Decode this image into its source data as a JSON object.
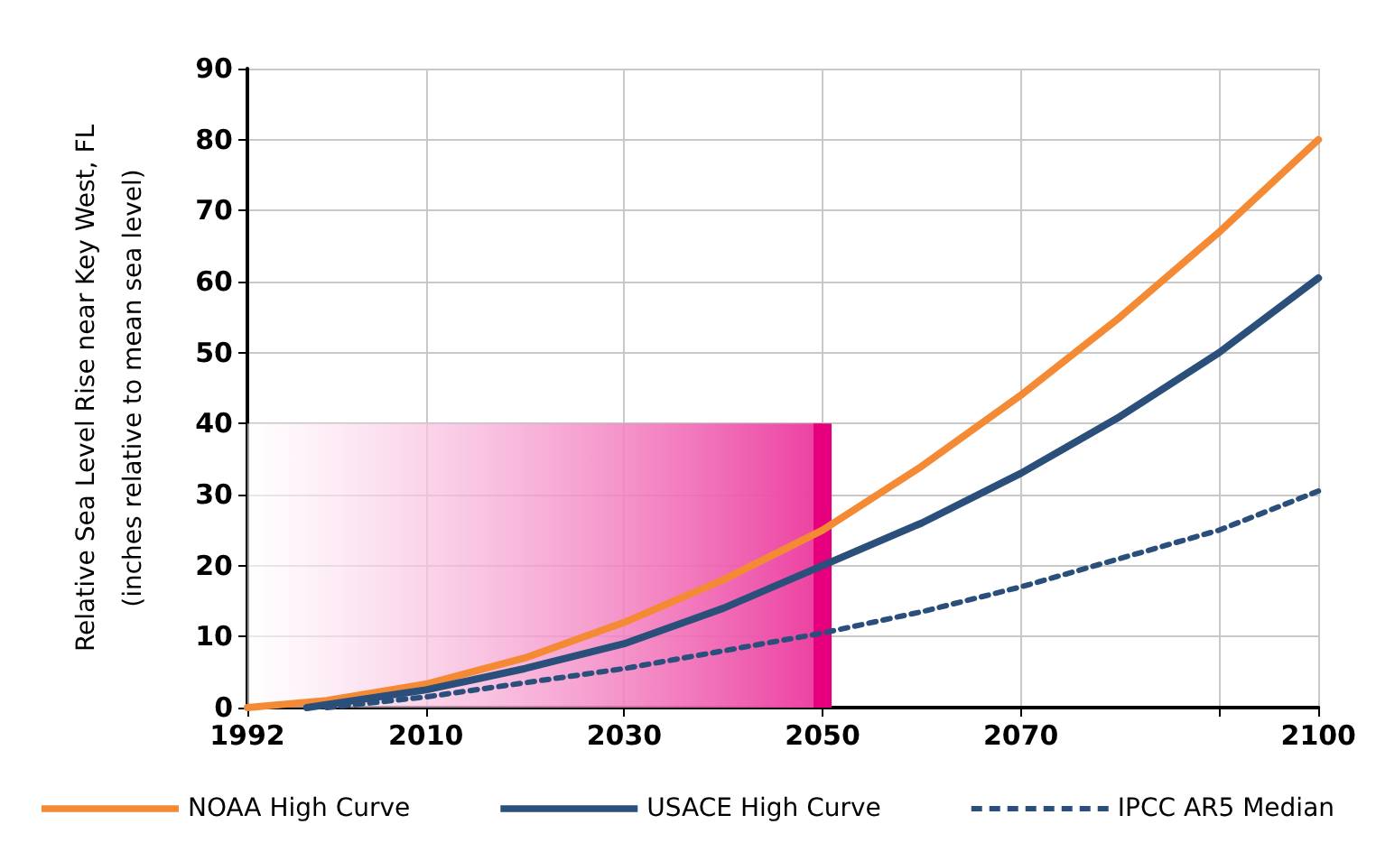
{
  "chart_data": {
    "type": "line",
    "ylabel": "Relative Sea Level Rise near Key West, FL\n(inches relative to mean sea level)",
    "xlim": [
      1992,
      2100
    ],
    "xticks": [
      1992,
      2010,
      2030,
      2050,
      2070,
      {
        "value": 2090,
        "label": null
      },
      2100
    ],
    "ylim": [
      0,
      90
    ],
    "yticks": [
      0,
      10,
      20,
      30,
      40,
      50,
      60,
      70,
      80,
      90
    ],
    "grid": true,
    "legend": "bottom",
    "marker": "none",
    "series": [
      {
        "name": "NOAA High Curve",
        "color": "#f58a35",
        "line_style": "solid",
        "x": [
          1992,
          2000,
          2010,
          2020,
          2030,
          2040,
          2050,
          2060,
          2070,
          2080,
          2090,
          2100
        ],
        "values": [
          0,
          1,
          3.3,
          7,
          12,
          18,
          25,
          34,
          44,
          55,
          67,
          80
        ]
      },
      {
        "name": "USACE High Curve",
        "color": "#2b4f7b",
        "line_style": "solid",
        "x": [
          1998,
          2010,
          2020,
          2030,
          2040,
          2050,
          2060,
          2070,
          2080,
          2090,
          2100
        ],
        "values": [
          0,
          2.5,
          5.5,
          9,
          14,
          20,
          26,
          33,
          41,
          50,
          60.5
        ]
      },
      {
        "name": "IPCC AR5 Median",
        "color": "#2b4f7b",
        "line_style": "dashed",
        "x": [
          2000,
          2010,
          2020,
          2030,
          2040,
          2050,
          2060,
          2070,
          2080,
          2090,
          2100
        ],
        "values": [
          0,
          1.5,
          3.5,
          5.5,
          8,
          10.5,
          13.5,
          17,
          21,
          25,
          30.5
        ]
      },
      {
        "type": "area",
        "color": "#ec3fa0",
        "x": [
          1992,
          2050
        ],
        "values": [
          40,
          40
        ]
      },
      {
        "type": "bar",
        "color": "#e6007e",
        "x": [
          2050
        ],
        "values": [
          40
        ]
      }
    ]
  }
}
